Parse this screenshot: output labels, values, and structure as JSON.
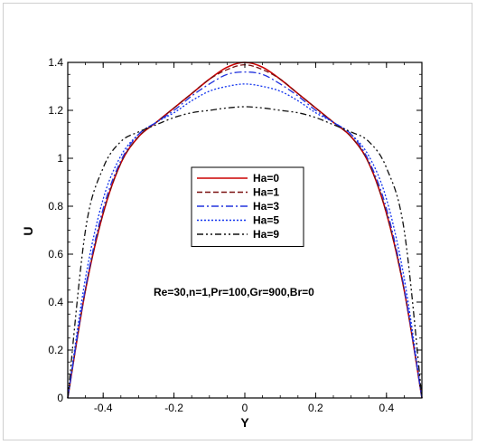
{
  "chart_data": {
    "type": "line",
    "title": "",
    "xlabel": "Y",
    "ylabel": "U",
    "xlim": [
      -0.5,
      0.5
    ],
    "ylim": [
      0,
      1.4
    ],
    "xticks": [
      -0.4,
      -0.2,
      0,
      0.2,
      0.4
    ],
    "yticks": [
      0,
      0.2,
      0.4,
      0.6,
      0.8,
      1,
      1.2,
      1.4
    ],
    "xtick_labels": [
      "-0.4",
      "-0.2",
      "0",
      "0.2",
      "0.4"
    ],
    "ytick_labels": [
      "0",
      "0.2",
      "0.4",
      "0.6",
      "0.8",
      "1",
      "1.2",
      "1.4"
    ],
    "grid": false,
    "legend_position": "center",
    "annotation": "Re=30,n=1,Pr=100,Gr=900,Br=0",
    "series": [
      {
        "name": "Ha=0",
        "color": "#cc0000",
        "dash": "solid",
        "x": [
          -0.5,
          -0.45,
          -0.4,
          -0.35,
          -0.3,
          -0.25,
          -0.2,
          -0.15,
          -0.1,
          -0.05,
          0,
          0.05,
          0.1,
          0.15,
          0.2,
          0.25,
          0.3,
          0.35,
          0.4,
          0.45,
          0.5
        ],
        "y": [
          0,
          0.45,
          0.77,
          0.98,
          1.09,
          1.15,
          1.21,
          1.27,
          1.33,
          1.38,
          1.4,
          1.38,
          1.33,
          1.27,
          1.21,
          1.15,
          1.09,
          0.98,
          0.77,
          0.45,
          0
        ]
      },
      {
        "name": "Ha=1",
        "color": "#7a1010",
        "dash": "dashed",
        "x": [
          -0.5,
          -0.45,
          -0.4,
          -0.35,
          -0.3,
          -0.25,
          -0.2,
          -0.15,
          -0.1,
          -0.05,
          0,
          0.05,
          0.1,
          0.15,
          0.2,
          0.25,
          0.3,
          0.35,
          0.4,
          0.45,
          0.5
        ],
        "y": [
          0,
          0.45,
          0.77,
          0.98,
          1.09,
          1.15,
          1.21,
          1.27,
          1.33,
          1.37,
          1.39,
          1.37,
          1.33,
          1.27,
          1.21,
          1.15,
          1.09,
          0.98,
          0.77,
          0.45,
          0
        ]
      },
      {
        "name": "Ha=3",
        "color": "#2233dd",
        "dash": "dashdot",
        "x": [
          -0.5,
          -0.45,
          -0.4,
          -0.35,
          -0.3,
          -0.25,
          -0.2,
          -0.15,
          -0.1,
          -0.05,
          0,
          0.05,
          0.1,
          0.15,
          0.2,
          0.25,
          0.3,
          0.35,
          0.4,
          0.45,
          0.5
        ],
        "y": [
          0,
          0.46,
          0.79,
          0.99,
          1.1,
          1.15,
          1.2,
          1.26,
          1.31,
          1.35,
          1.36,
          1.35,
          1.31,
          1.26,
          1.2,
          1.15,
          1.1,
          0.99,
          0.79,
          0.46,
          0
        ]
      },
      {
        "name": "Ha=5",
        "color": "#1133ee",
        "dash": "dotted",
        "x": [
          -0.5,
          -0.45,
          -0.4,
          -0.35,
          -0.3,
          -0.25,
          -0.2,
          -0.15,
          -0.1,
          -0.05,
          0,
          0.05,
          0.1,
          0.15,
          0.2,
          0.25,
          0.3,
          0.35,
          0.4,
          0.45,
          0.5
        ],
        "y": [
          0,
          0.5,
          0.83,
          1.01,
          1.1,
          1.15,
          1.19,
          1.24,
          1.28,
          1.3,
          1.31,
          1.3,
          1.28,
          1.24,
          1.19,
          1.15,
          1.1,
          1.01,
          0.83,
          0.5,
          0
        ]
      },
      {
        "name": "Ha=9",
        "color": "#111111",
        "dash": "dashdotdot",
        "x": [
          -0.5,
          -0.45,
          -0.4,
          -0.35,
          -0.3,
          -0.25,
          -0.2,
          -0.15,
          -0.1,
          -0.05,
          0,
          0.05,
          0.1,
          0.15,
          0.2,
          0.25,
          0.3,
          0.35,
          0.4,
          0.45,
          0.5
        ],
        "y": [
          0,
          0.7,
          0.96,
          1.07,
          1.11,
          1.14,
          1.17,
          1.19,
          1.2,
          1.21,
          1.215,
          1.21,
          1.2,
          1.19,
          1.17,
          1.14,
          1.11,
          1.07,
          0.96,
          0.7,
          0
        ]
      }
    ]
  }
}
